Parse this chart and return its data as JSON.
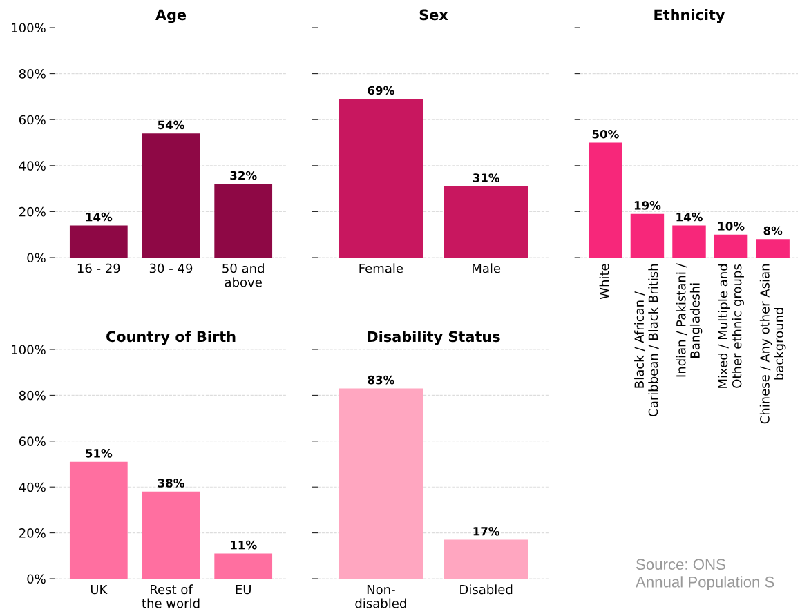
{
  "chart_data": [
    {
      "type": "bar",
      "title": "Age",
      "categories": [
        "16 - 29",
        "30 - 49",
        "50 and\nabove"
      ],
      "values": [
        14,
        54,
        32
      ],
      "value_labels": [
        "14%",
        "54%",
        "32%"
      ],
      "color": "#8e0845",
      "ylim": [
        0,
        100
      ],
      "yticks": [
        {
          "value": 0,
          "label": "0%"
        },
        {
          "value": 20,
          "label": "20%"
        },
        {
          "value": 40,
          "label": "40%"
        },
        {
          "value": 60,
          "label": "60%"
        },
        {
          "value": 80,
          "label": "80%"
        },
        {
          "value": 100,
          "label": "100%"
        }
      ],
      "grid": "y"
    },
    {
      "type": "bar",
      "title": "Sex",
      "categories": [
        "Female",
        "Male"
      ],
      "values": [
        69,
        31
      ],
      "value_labels": [
        "69%",
        "31%"
      ],
      "color": "#c8175f",
      "ylim": [
        0,
        100
      ],
      "yticks": [
        {
          "value": 0,
          "label": null
        },
        {
          "value": 20,
          "label": null
        },
        {
          "value": 40,
          "label": null
        },
        {
          "value": 60,
          "label": null
        },
        {
          "value": 80,
          "label": null
        },
        {
          "value": 100,
          "label": null
        }
      ],
      "grid": "y",
      "tick_labels": "x"
    },
    {
      "type": "bar",
      "title": "Ethnicity",
      "categories": [
        "White",
        "Black / African /\nCaribbean / Black British",
        "Indian / Pakistani /\nBangladeshi",
        "Mixed / Multiple and\nOther ethnic groups",
        "Chinese / Any other Asian\nbackground"
      ],
      "values": [
        50,
        19,
        14,
        10,
        8
      ],
      "value_labels": [
        "50%",
        "19%",
        "14%",
        "10%",
        "8%"
      ],
      "color": "#f7277a",
      "ylim": [
        0,
        100
      ],
      "yticks": [
        {
          "value": 0,
          "label": null
        },
        {
          "value": 20,
          "label": null
        },
        {
          "value": 40,
          "label": null
        },
        {
          "value": 60,
          "label": null
        },
        {
          "value": 80,
          "label": null
        },
        {
          "value": 100,
          "label": null
        }
      ],
      "grid": "y",
      "tick_labels": "x"
    },
    {
      "type": "bar",
      "title": "Country of Birth",
      "categories": [
        "UK",
        "Rest of\nthe world",
        "EU"
      ],
      "values": [
        51,
        38,
        11
      ],
      "value_labels": [
        "51%",
        "38%",
        "11%"
      ],
      "color": "#ff6fa0",
      "ylim": [
        0,
        100
      ],
      "yticks": [
        {
          "value": 0,
          "label": "0%"
        },
        {
          "value": 20,
          "label": "20%"
        },
        {
          "value": 40,
          "label": "40%"
        },
        {
          "value": 60,
          "label": "60%"
        },
        {
          "value": 80,
          "label": "80%"
        },
        {
          "value": 100,
          "label": "100%"
        }
      ],
      "grid": "y"
    },
    {
      "type": "bar",
      "title": "Disability Status",
      "categories": [
        "Non-\ndisabled",
        "Disabled"
      ],
      "values": [
        83,
        17
      ],
      "value_labels": [
        "83%",
        "17%"
      ],
      "color": "#ffa6c0",
      "ylim": [
        0,
        100
      ],
      "yticks": [
        {
          "value": 0,
          "label": null
        },
        {
          "value": 20,
          "label": null
        },
        {
          "value": 40,
          "label": null
        },
        {
          "value": 60,
          "label": null
        },
        {
          "value": 80,
          "label": null
        },
        {
          "value": 100,
          "label": null
        }
      ],
      "grid": "y",
      "tick_labels": "x",
      "annotations": [
        "Source: ONS\nAnnual Population S"
      ]
    }
  ]
}
